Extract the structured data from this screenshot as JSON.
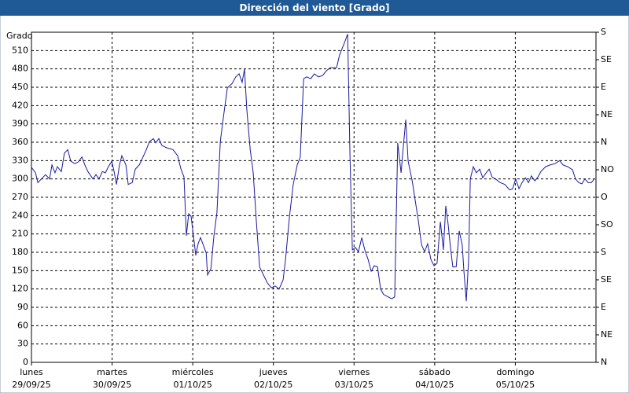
{
  "chart_data": {
    "type": "line",
    "title": "Dirección del viento [Grado]",
    "y_label": "Grado",
    "xlim": [
      0,
      168
    ],
    "xticks": [
      {
        "value": 0,
        "label": "lunes"
      },
      {
        "value": 24,
        "label": "martes"
      },
      {
        "value": 48,
        "label": "miércoles"
      },
      {
        "value": 72,
        "label": "jueves"
      },
      {
        "value": 96,
        "label": "viernes"
      },
      {
        "value": 120,
        "label": "sábado"
      },
      {
        "value": 144,
        "label": "domingo"
      }
    ],
    "xtick_dates": [
      "29/09/25",
      "30/09/25",
      "01/10/25",
      "02/10/25",
      "03/10/25",
      "04/10/25",
      "05/10/25"
    ],
    "ylim": [
      0,
      540
    ],
    "yticks": [
      0,
      30,
      60,
      90,
      120,
      150,
      180,
      210,
      240,
      270,
      300,
      330,
      360,
      390,
      420,
      450,
      480,
      510
    ],
    "y2lim": [
      0,
      540
    ],
    "y2ticks": [
      {
        "value": 0,
        "label": "N"
      },
      {
        "value": 45,
        "label": "NE"
      },
      {
        "value": 90,
        "label": "E"
      },
      {
        "value": 135,
        "label": "SE"
      },
      {
        "value": 180,
        "label": "S"
      },
      {
        "value": 225,
        "label": "SO"
      },
      {
        "value": 270,
        "label": "O"
      },
      {
        "value": 315,
        "label": "NO"
      },
      {
        "value": 360,
        "label": "N"
      },
      {
        "value": 405,
        "label": "NE"
      },
      {
        "value": 450,
        "label": "E"
      },
      {
        "value": 495,
        "label": "SE"
      },
      {
        "value": 540,
        "label": "S"
      }
    ],
    "grid": true,
    "x": [
      0,
      1.2,
      1.9,
      3.5,
      4.2,
      5.4,
      6.1,
      7.0,
      7.7,
      8.9,
      9.8,
      10.8,
      11.7,
      12.9,
      14.0,
      15.0,
      15.9,
      16.8,
      18.3,
      19.2,
      20.1,
      21.1,
      22.0,
      22.9,
      23.9,
      24.6,
      25.3,
      26.2,
      26.9,
      28.1,
      28.8,
      30.0,
      30.9,
      32.1,
      33.2,
      34.2,
      35.1,
      36.3,
      37.0,
      37.9,
      38.8,
      40.2,
      42.1,
      43.5,
      44.5,
      45.4,
      46.1,
      46.8,
      47.5,
      48.2,
      48.9,
      49.6,
      50.3,
      51.0,
      52.0,
      52.4,
      53.4,
      54.3,
      55.2,
      56.2,
      57.1,
      58.3,
      59.7,
      60.8,
      61.8,
      62.7,
      63.4,
      64.1,
      65.1,
      66.0,
      66.9,
      67.9,
      69.3,
      70.2,
      71.4,
      72.5,
      73.7,
      74.9,
      75.6,
      76.8,
      77.9,
      79.1,
      80.0,
      81.0,
      81.9,
      83.1,
      84.2,
      85.4,
      86.6,
      87.8,
      88.9,
      90.8,
      91.7,
      93.1,
      94.1,
      94.8,
      95.5,
      96.4,
      97.3,
      98.3,
      99.2,
      100.2,
      101.1,
      102.0,
      103.0,
      103.9,
      104.8,
      106.2,
      107.2,
      108.1,
      109.0,
      110.0,
      110.7,
      111.4,
      112.1,
      113.3,
      114.2,
      115.1,
      116.1,
      117.0,
      117.9,
      118.9,
      119.8,
      120.7,
      121.7,
      122.6,
      123.3,
      124.0,
      124.7,
      125.4,
      126.4,
      127.3,
      128.2,
      128.7,
      129.4,
      130.1,
      130.6,
      131.5,
      132.4,
      133.4,
      134.3,
      135.3,
      136.2,
      137.1,
      138.1,
      139.5,
      140.9,
      142.3,
      143.2,
      144.1,
      145.1,
      146.0,
      147.0,
      147.9,
      148.8,
      149.8,
      150.7,
      151.6,
      153.0,
      154.4,
      155.8,
      157.2,
      158.2,
      159.6,
      161.0,
      161.9,
      162.9,
      163.8,
      164.7,
      165.7,
      166.6,
      167.5
    ],
    "series": [
      {
        "color": "#1a1aa0",
        "values": [
          319,
          310,
          294,
          303,
          307,
          300,
          323,
          310,
          320,
          312,
          342,
          348,
          329,
          325,
          328,
          336,
          323,
          312,
          300,
          307,
          300,
          312,
          310,
          320,
          329,
          312,
          291,
          323,
          338,
          323,
          291,
          294,
          316,
          323,
          336,
          348,
          361,
          366,
          359,
          366,
          355,
          351,
          348,
          338,
          316,
          303,
          207,
          243,
          239,
          207,
          175,
          194,
          204,
          194,
          179,
          143,
          153,
          207,
          245,
          361,
          400,
          449,
          456,
          467,
          472,
          458,
          480,
          413,
          348,
          310,
          233,
          156,
          140,
          130,
          122,
          125,
          120,
          135,
          168,
          239,
          291,
          323,
          336,
          464,
          467,
          464,
          472,
          467,
          469,
          477,
          482,
          482,
          503,
          522,
          537,
          336,
          184,
          188,
          181,
          204,
          184,
          168,
          149,
          158,
          156,
          120,
          111,
          107,
          104,
          107,
          359,
          310,
          355,
          397,
          329,
          297,
          265,
          233,
          192,
          181,
          194,
          168,
          158,
          162,
          230,
          184,
          256,
          226,
          188,
          156,
          156,
          215,
          192,
          149,
          100,
          168,
          300,
          320,
          310,
          316,
          302,
          310,
          316,
          303,
          300,
          294,
          291,
          282,
          284,
          300,
          284,
          294,
          302,
          294,
          305,
          297,
          303,
          312,
          320,
          323,
          325,
          330,
          323,
          320,
          315,
          300,
          294,
          292,
          300,
          294,
          294,
          300
        ]
      }
    ]
  }
}
